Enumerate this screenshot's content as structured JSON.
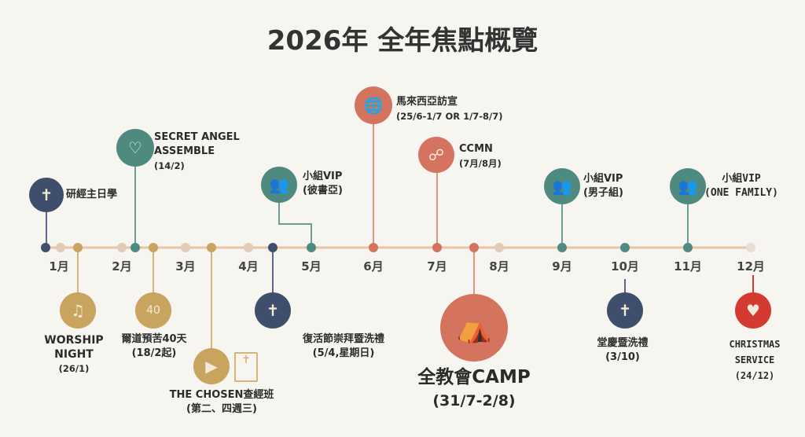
{
  "title": "2026年 全年焦點概覽",
  "months": [
    "1月",
    "2月",
    "3月",
    "4月",
    "5月",
    "6月",
    "7月",
    "8月",
    "9月",
    "10月",
    "11月",
    "12月"
  ],
  "colors": {
    "navy": "#3f4f6b",
    "teal": "#4e8a80",
    "coral": "#d4735e",
    "gold": "#c9a45f",
    "red": "#d43a2f",
    "background": "#f7f5f0"
  },
  "events_top": [
    {
      "name": "研經主日學",
      "icon": "bible-icon"
    },
    {
      "name": "SECRET ANGEL",
      "name2": "ASSEMBLE",
      "date": "(14/2)",
      "icon": "winged-heart-icon"
    },
    {
      "name": "小組VIP",
      "date": "(彼書亞)",
      "icon": "small-group-icon"
    },
    {
      "name": "馬來西亞訪宣",
      "date": "(25/6-1/7 OR 1/7-8/7)",
      "icon": "globe-hands-icon"
    },
    {
      "name": "CCMN",
      "date": "(7月/8月)",
      "icon": "network-icon"
    },
    {
      "name": "小組VIP",
      "date": "(男子組)",
      "icon": "small-group-icon"
    },
    {
      "name": "小組VIP",
      "date": "(ONE FAMILY)",
      "icon": "small-group-icon"
    }
  ],
  "events_bottom": [
    {
      "name": "WORSHIP",
      "name2": "NIGHT",
      "date": "(26/1)",
      "icon": "microphone-icon"
    },
    {
      "name": "爾道預苦40天",
      "date": "(18/2起)",
      "icon": "calendar-40-icon",
      "icon_text": "40"
    },
    {
      "name": "THE CHOSEN查經班",
      "date": "(第二、四週三)",
      "icon": "play-icon"
    },
    {
      "name": "復活節崇拜暨洗禮",
      "date": "(5/4,星期日)",
      "icon": "baptism-icon"
    },
    {
      "name": "全教會CAMP",
      "date": "(31/7-2/8)",
      "icon": "tent-campfire-icon"
    },
    {
      "name": "堂慶暨洗禮",
      "date": "(3/10)",
      "icon": "baptism-icon"
    },
    {
      "name": "CHRISTMAS",
      "name2": "SERVICE",
      "date": "(24/12)",
      "icon": "heart-gift-icon"
    }
  ]
}
